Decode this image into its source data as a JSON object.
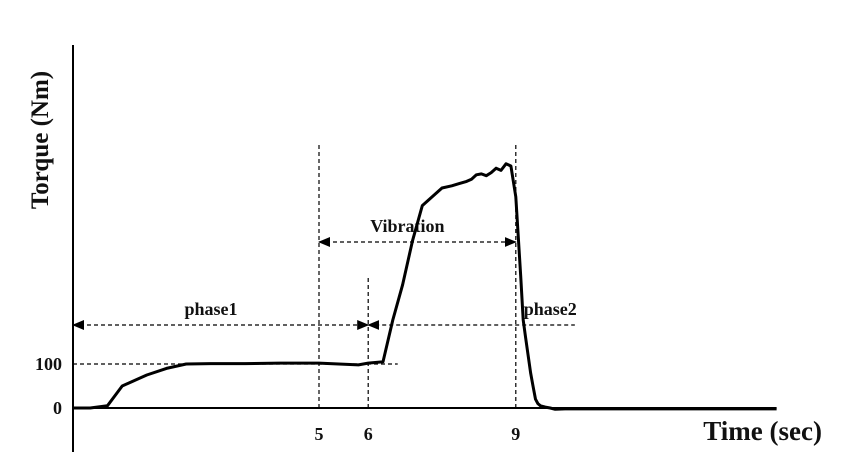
{
  "chart_data": {
    "type": "line",
    "title": "",
    "xlabel": "Time (sec)",
    "ylabel": "Torque (Nm)",
    "xlim": [
      0,
      14.3
    ],
    "ylim": [
      0,
      620
    ],
    "x_ticks": [
      {
        "value": 5,
        "label": "5"
      },
      {
        "value": 6,
        "label": "6"
      },
      {
        "value": 9,
        "label": "9"
      }
    ],
    "y_ticks": [
      {
        "value": 0,
        "label": "0"
      },
      {
        "value": 100,
        "label": "100"
      }
    ],
    "grid": false,
    "series": [
      {
        "color": "#000000",
        "x": [
          0,
          0.35,
          0.7,
          1.0,
          1.2,
          1.5,
          1.9,
          2.3,
          2.8,
          3.5,
          4.2,
          5.0,
          5.4,
          5.8,
          6.0,
          6.3,
          6.5,
          6.7,
          6.9,
          7.1,
          7.3,
          7.5,
          7.7,
          7.85,
          8.0,
          8.1,
          8.2,
          8.3,
          8.4,
          8.5,
          8.6,
          8.7,
          8.8,
          8.9,
          9.0,
          9.1,
          9.15,
          9.2,
          9.25,
          9.3,
          9.35,
          9.4,
          9.45,
          9.5,
          9.6,
          9.7,
          9.8,
          10.0,
          11.0,
          12.0,
          13.0,
          14.3
        ],
        "y": [
          0,
          0,
          5,
          50,
          60,
          75,
          90,
          100,
          101,
          101,
          102,
          102,
          100,
          98,
          102,
          105,
          200,
          280,
          380,
          460,
          480,
          500,
          505,
          510,
          515,
          520,
          530,
          532,
          528,
          535,
          545,
          540,
          555,
          550,
          480,
          300,
          200,
          160,
          120,
          80,
          50,
          20,
          10,
          5,
          2,
          0,
          -3,
          -2,
          -2,
          -2,
          -2,
          -2
        ]
      }
    ],
    "vertical_markers": [
      5,
      6,
      9
    ],
    "reference_level": 100,
    "annotations": [
      {
        "text": "phase1",
        "from": 0,
        "to": 6
      },
      {
        "text": "Vibration",
        "from": 5,
        "to": 9
      },
      {
        "text": "phase2",
        "from": 6,
        "to": 10.2
      }
    ]
  }
}
